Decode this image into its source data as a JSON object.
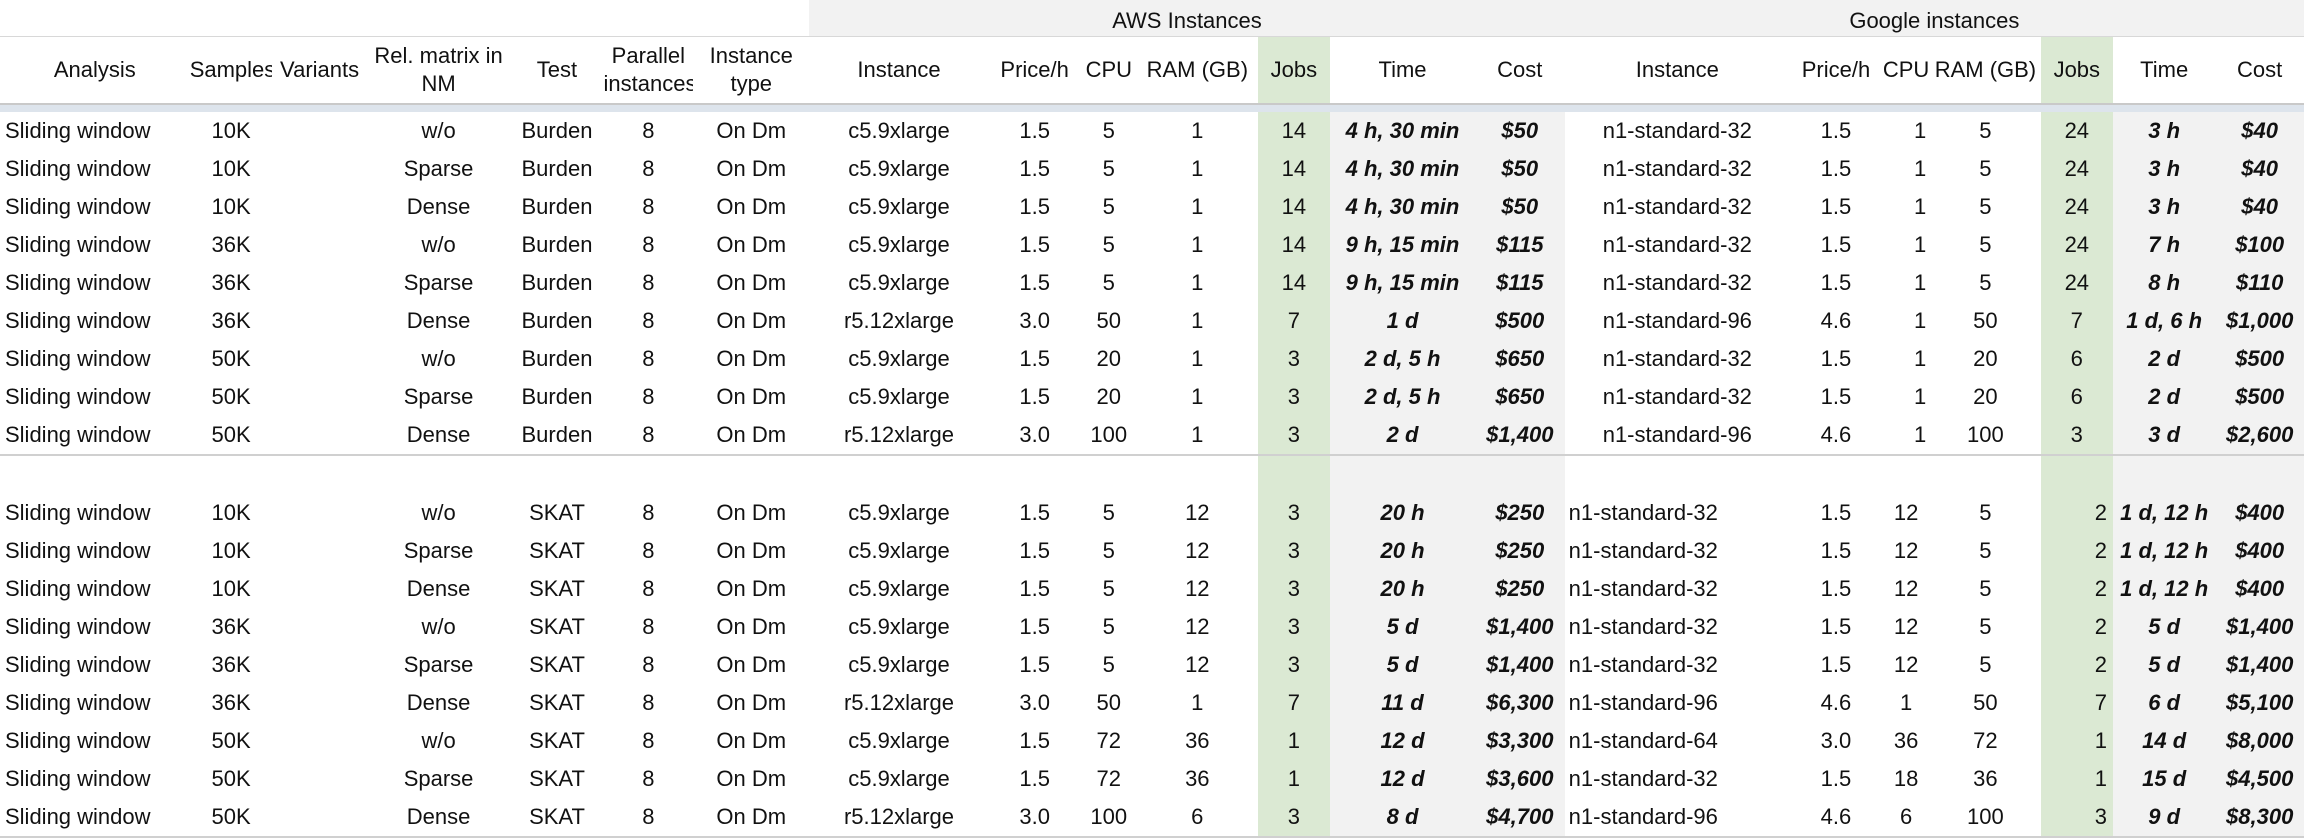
{
  "groups": {
    "aws": "AWS Instances",
    "google": "Google instances"
  },
  "headers": {
    "analysis": "Analysis",
    "samples": "Samples",
    "variants": "Variants",
    "rel_matrix": "Rel. matrix in NM",
    "test": "Test",
    "parallel": "Parallel instances",
    "instance_type": "Instance type",
    "aws_instance": "Instance",
    "aws_price": "Price/h",
    "aws_cpu": "CPU",
    "aws_ram": "RAM (GB)",
    "aws_jobs": "Jobs",
    "aws_time": "Time",
    "aws_cost": "Cost",
    "g_instance": "Instance",
    "g_price": "Price/h",
    "g_cpu": "CPU",
    "g_ram": "RAM (GB)",
    "g_jobs": "Jobs",
    "g_time": "Time",
    "g_cost": "Cost"
  },
  "rows": [
    [
      "Sliding window",
      "10K",
      "",
      "w/o",
      "Burden",
      "8",
      "On Dm",
      "c5.9xlarge",
      "1.5",
      "5",
      "1",
      "14",
      "4 h, 30 min",
      "$50",
      "n1-standard-32",
      "1.5",
      "1",
      "5",
      "24",
      "3 h",
      "$40"
    ],
    [
      "Sliding window",
      "10K",
      "",
      "Sparse",
      "Burden",
      "8",
      "On Dm",
      "c5.9xlarge",
      "1.5",
      "5",
      "1",
      "14",
      "4 h, 30 min",
      "$50",
      "n1-standard-32",
      "1.5",
      "1",
      "5",
      "24",
      "3 h",
      "$40"
    ],
    [
      "Sliding window",
      "10K",
      "",
      "Dense",
      "Burden",
      "8",
      "On Dm",
      "c5.9xlarge",
      "1.5",
      "5",
      "1",
      "14",
      "4 h, 30 min",
      "$50",
      "n1-standard-32",
      "1.5",
      "1",
      "5",
      "24",
      "3 h",
      "$40"
    ],
    [
      "Sliding window",
      "36K",
      "",
      "w/o",
      "Burden",
      "8",
      "On Dm",
      "c5.9xlarge",
      "1.5",
      "5",
      "1",
      "14",
      "9 h, 15 min",
      "$115",
      "n1-standard-32",
      "1.5",
      "1",
      "5",
      "24",
      "7 h",
      "$100"
    ],
    [
      "Sliding window",
      "36K",
      "",
      "Sparse",
      "Burden",
      "8",
      "On Dm",
      "c5.9xlarge",
      "1.5",
      "5",
      "1",
      "14",
      "9 h, 15 min",
      "$115",
      "n1-standard-32",
      "1.5",
      "1",
      "5",
      "24",
      "8 h",
      "$110"
    ],
    [
      "Sliding window",
      "36K",
      "",
      "Dense",
      "Burden",
      "8",
      "On Dm",
      "r5.12xlarge",
      "3.0",
      "50",
      "1",
      "7",
      "1 d",
      "$500",
      "n1-standard-96",
      "4.6",
      "1",
      "50",
      "7",
      "1 d, 6 h",
      "$1,000"
    ],
    [
      "Sliding window",
      "50K",
      "",
      "w/o",
      "Burden",
      "8",
      "On Dm",
      "c5.9xlarge",
      "1.5",
      "20",
      "1",
      "3",
      "2 d, 5 h",
      "$650",
      "n1-standard-32",
      "1.5",
      "1",
      "20",
      "6",
      "2 d",
      "$500"
    ],
    [
      "Sliding window",
      "50K",
      "",
      "Sparse",
      "Burden",
      "8",
      "On Dm",
      "c5.9xlarge",
      "1.5",
      "20",
      "1",
      "3",
      "2 d, 5 h",
      "$650",
      "n1-standard-32",
      "1.5",
      "1",
      "20",
      "6",
      "2 d",
      "$500"
    ],
    [
      "Sliding window",
      "50K",
      "",
      "Dense",
      "Burden",
      "8",
      "On Dm",
      "r5.12xlarge",
      "3.0",
      "100",
      "1",
      "3",
      "2 d",
      "$1,400",
      "n1-standard-96",
      "4.6",
      "1",
      "100",
      "3",
      "3 d",
      "$2,600"
    ],
    [
      "Sliding window",
      "10K",
      "",
      "w/o",
      "SKAT",
      "8",
      "On Dm",
      "c5.9xlarge",
      "1.5",
      "5",
      "12",
      "3",
      "20 h",
      "$250",
      "n1-standard-32",
      "1.5",
      "12",
      "5",
      "2",
      "1 d, 12 h",
      "$400"
    ],
    [
      "Sliding window",
      "10K",
      "",
      "Sparse",
      "SKAT",
      "8",
      "On Dm",
      "c5.9xlarge",
      "1.5",
      "5",
      "12",
      "3",
      "20 h",
      "$250",
      "n1-standard-32",
      "1.5",
      "12",
      "5",
      "2",
      "1 d, 12 h",
      "$400"
    ],
    [
      "Sliding window",
      "10K",
      "",
      "Dense",
      "SKAT",
      "8",
      "On Dm",
      "c5.9xlarge",
      "1.5",
      "5",
      "12",
      "3",
      "20 h",
      "$250",
      "n1-standard-32",
      "1.5",
      "12",
      "5",
      "2",
      "1 d, 12 h",
      "$400"
    ],
    [
      "Sliding window",
      "36K",
      "",
      "w/o",
      "SKAT",
      "8",
      "On Dm",
      "c5.9xlarge",
      "1.5",
      "5",
      "12",
      "3",
      "5 d",
      "$1,400",
      "n1-standard-32",
      "1.5",
      "12",
      "5",
      "2",
      "5 d",
      "$1,400"
    ],
    [
      "Sliding window",
      "36K",
      "",
      "Sparse",
      "SKAT",
      "8",
      "On Dm",
      "c5.9xlarge",
      "1.5",
      "5",
      "12",
      "3",
      "5 d",
      "$1,400",
      "n1-standard-32",
      "1.5",
      "12",
      "5",
      "2",
      "5 d",
      "$1,400"
    ],
    [
      "Sliding window",
      "36K",
      "",
      "Dense",
      "SKAT",
      "8",
      "On Dm",
      "r5.12xlarge",
      "3.0",
      "50",
      "1",
      "7",
      "11 d",
      "$6,300",
      "n1-standard-96",
      "4.6",
      "1",
      "50",
      "7",
      "6 d",
      "$5,100"
    ],
    [
      "Sliding window",
      "50K",
      "",
      "w/o",
      "SKAT",
      "8",
      "On Dm",
      "c5.9xlarge",
      "1.5",
      "72",
      "36",
      "1",
      "12 d",
      "$3,300",
      "n1-standard-64",
      "3.0",
      "36",
      "72",
      "1",
      "14 d",
      "$8,000"
    ],
    [
      "Sliding window",
      "50K",
      "",
      "Sparse",
      "SKAT",
      "8",
      "On Dm",
      "c5.9xlarge",
      "1.5",
      "72",
      "36",
      "1",
      "12 d",
      "$3,600",
      "n1-standard-32",
      "1.5",
      "18",
      "36",
      "1",
      "15 d",
      "$4,500"
    ],
    [
      "Sliding window",
      "50K",
      "",
      "Dense",
      "SKAT",
      "8",
      "On Dm",
      "r5.12xlarge",
      "3.0",
      "100",
      "6",
      "3",
      "8 d",
      "$4,700",
      "n1-standard-96",
      "4.6",
      "6",
      "100",
      "3",
      "9 d",
      "$8,300"
    ]
  ],
  "colors": {
    "jobs_bg": "#dbe9d3",
    "header_group_bg": "#f2f2f2",
    "time_cost_bg": "#f2f2f2",
    "spacer_bg": "#dde4ec"
  }
}
